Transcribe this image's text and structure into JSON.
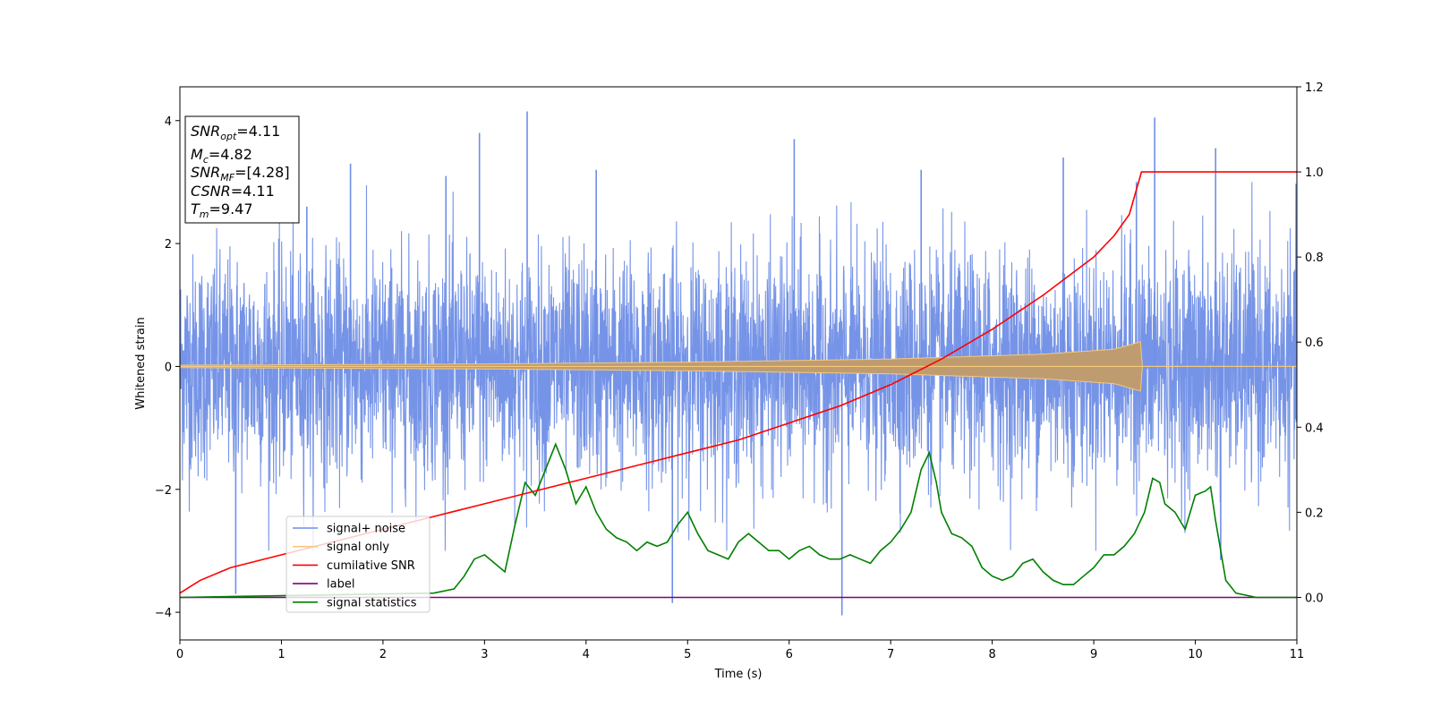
{
  "chart_data": {
    "type": "line",
    "xlabel": "Time (s)",
    "ylabel": "Whitened strain",
    "xlim": [
      0,
      11
    ],
    "ylim": [
      -4.45,
      4.55
    ],
    "y2lim": [
      -0.1,
      1.2
    ],
    "xticks": [
      "0",
      "1",
      "2",
      "3",
      "4",
      "5",
      "6",
      "7",
      "8",
      "9",
      "10",
      "11"
    ],
    "yticks": [
      "4",
      "2",
      "0",
      "−2",
      "−4"
    ],
    "y2ticks": [
      "1.2",
      "1.0",
      "0.8",
      "0.6",
      "0.4",
      "0.2",
      "0.0"
    ],
    "grid": false,
    "legend_position": "lower-left",
    "series": [
      {
        "name": "signal+ noise",
        "color": "#6f8ee6",
        "axis": "left",
        "noise_std": 0.9,
        "spikes": [
          [
            0.55,
            -3.7
          ],
          [
            1.25,
            2.6
          ],
          [
            2.62,
            3.1
          ],
          [
            2.95,
            3.8
          ],
          [
            3.42,
            4.15
          ],
          [
            4.1,
            3.2
          ],
          [
            4.85,
            -3.85
          ],
          [
            6.05,
            3.7
          ],
          [
            6.52,
            -4.05
          ],
          [
            9.6,
            4.05
          ],
          [
            10.2,
            3.55
          ],
          [
            10.25,
            -3.15
          ],
          [
            9.42,
            3.0
          ],
          [
            1.68,
            3.3
          ],
          [
            7.3,
            3.2
          ],
          [
            8.7,
            3.4
          ]
        ]
      },
      {
        "name": "signal only",
        "color": "#f5c87a",
        "axis": "left",
        "envelope": [
          [
            0,
            0.02
          ],
          [
            3,
            0.04
          ],
          [
            5,
            0.07
          ],
          [
            7,
            0.12
          ],
          [
            8.5,
            0.2
          ],
          [
            9.2,
            0.28
          ],
          [
            9.46,
            0.4
          ],
          [
            9.47,
            0.0
          ],
          [
            11,
            0.0
          ]
        ]
      },
      {
        "name": "cumilative SNR",
        "color": "#ff0000",
        "axis": "right",
        "x": [
          0,
          0.2,
          0.5,
          1,
          1.5,
          2,
          2.5,
          3,
          3.5,
          4,
          4.5,
          5,
          5.5,
          6,
          6.5,
          7,
          7.5,
          8,
          8.5,
          9,
          9.2,
          9.35,
          9.47,
          11
        ],
        "y": [
          0.01,
          0.04,
          0.07,
          0.1,
          0.13,
          0.16,
          0.19,
          0.22,
          0.25,
          0.28,
          0.31,
          0.34,
          0.37,
          0.41,
          0.45,
          0.5,
          0.56,
          0.63,
          0.71,
          0.8,
          0.85,
          0.9,
          1.0,
          1.0
        ]
      },
      {
        "name": "label",
        "color": "#800080",
        "axis": "right",
        "x": [
          0,
          11
        ],
        "y": [
          0,
          0
        ]
      },
      {
        "name": "signal statistics",
        "color": "#008000",
        "axis": "right",
        "x": [
          0,
          2.5,
          2.7,
          2.8,
          2.9,
          3.0,
          3.1,
          3.2,
          3.3,
          3.4,
          3.5,
          3.6,
          3.7,
          3.8,
          3.9,
          4.0,
          4.1,
          4.2,
          4.3,
          4.4,
          4.5,
          4.6,
          4.7,
          4.8,
          4.9,
          5.0,
          5.1,
          5.2,
          5.3,
          5.4,
          5.5,
          5.6,
          5.7,
          5.8,
          5.9,
          6.0,
          6.1,
          6.2,
          6.3,
          6.4,
          6.5,
          6.6,
          6.7,
          6.8,
          6.9,
          7.0,
          7.1,
          7.2,
          7.3,
          7.38,
          7.45,
          7.5,
          7.6,
          7.7,
          7.8,
          7.9,
          8.0,
          8.1,
          8.2,
          8.3,
          8.4,
          8.5,
          8.6,
          8.7,
          8.8,
          8.9,
          9.0,
          9.1,
          9.2,
          9.3,
          9.4,
          9.5,
          9.58,
          9.65,
          9.7,
          9.8,
          9.9,
          10.0,
          10.1,
          10.15,
          10.2,
          10.3,
          10.4,
          10.6,
          11
        ],
        "y": [
          0.0,
          0.01,
          0.02,
          0.05,
          0.09,
          0.1,
          0.08,
          0.06,
          0.17,
          0.27,
          0.24,
          0.3,
          0.36,
          0.3,
          0.22,
          0.26,
          0.2,
          0.16,
          0.14,
          0.13,
          0.11,
          0.13,
          0.12,
          0.13,
          0.17,
          0.2,
          0.15,
          0.11,
          0.1,
          0.09,
          0.13,
          0.15,
          0.13,
          0.11,
          0.11,
          0.09,
          0.11,
          0.12,
          0.1,
          0.09,
          0.09,
          0.1,
          0.09,
          0.08,
          0.11,
          0.13,
          0.16,
          0.2,
          0.3,
          0.34,
          0.27,
          0.2,
          0.15,
          0.14,
          0.12,
          0.07,
          0.05,
          0.04,
          0.05,
          0.08,
          0.09,
          0.06,
          0.04,
          0.03,
          0.03,
          0.05,
          0.07,
          0.1,
          0.1,
          0.12,
          0.15,
          0.2,
          0.28,
          0.27,
          0.22,
          0.2,
          0.16,
          0.24,
          0.25,
          0.26,
          0.18,
          0.04,
          0.01,
          0.0,
          0.0
        ]
      }
    ],
    "annotations": [
      {
        "symbol": "SNR",
        "sub": "opt",
        "value": "=4.11"
      },
      {
        "symbol": "M",
        "sub": "c",
        "value": "=4.82"
      },
      {
        "symbol": "SNR",
        "sub": "MF",
        "value": "=[4.28]"
      },
      {
        "symbol": "CSNR",
        "sub": "",
        "value": "=4.11"
      },
      {
        "symbol": "T",
        "sub": "m",
        "value": "=9.47"
      }
    ]
  }
}
